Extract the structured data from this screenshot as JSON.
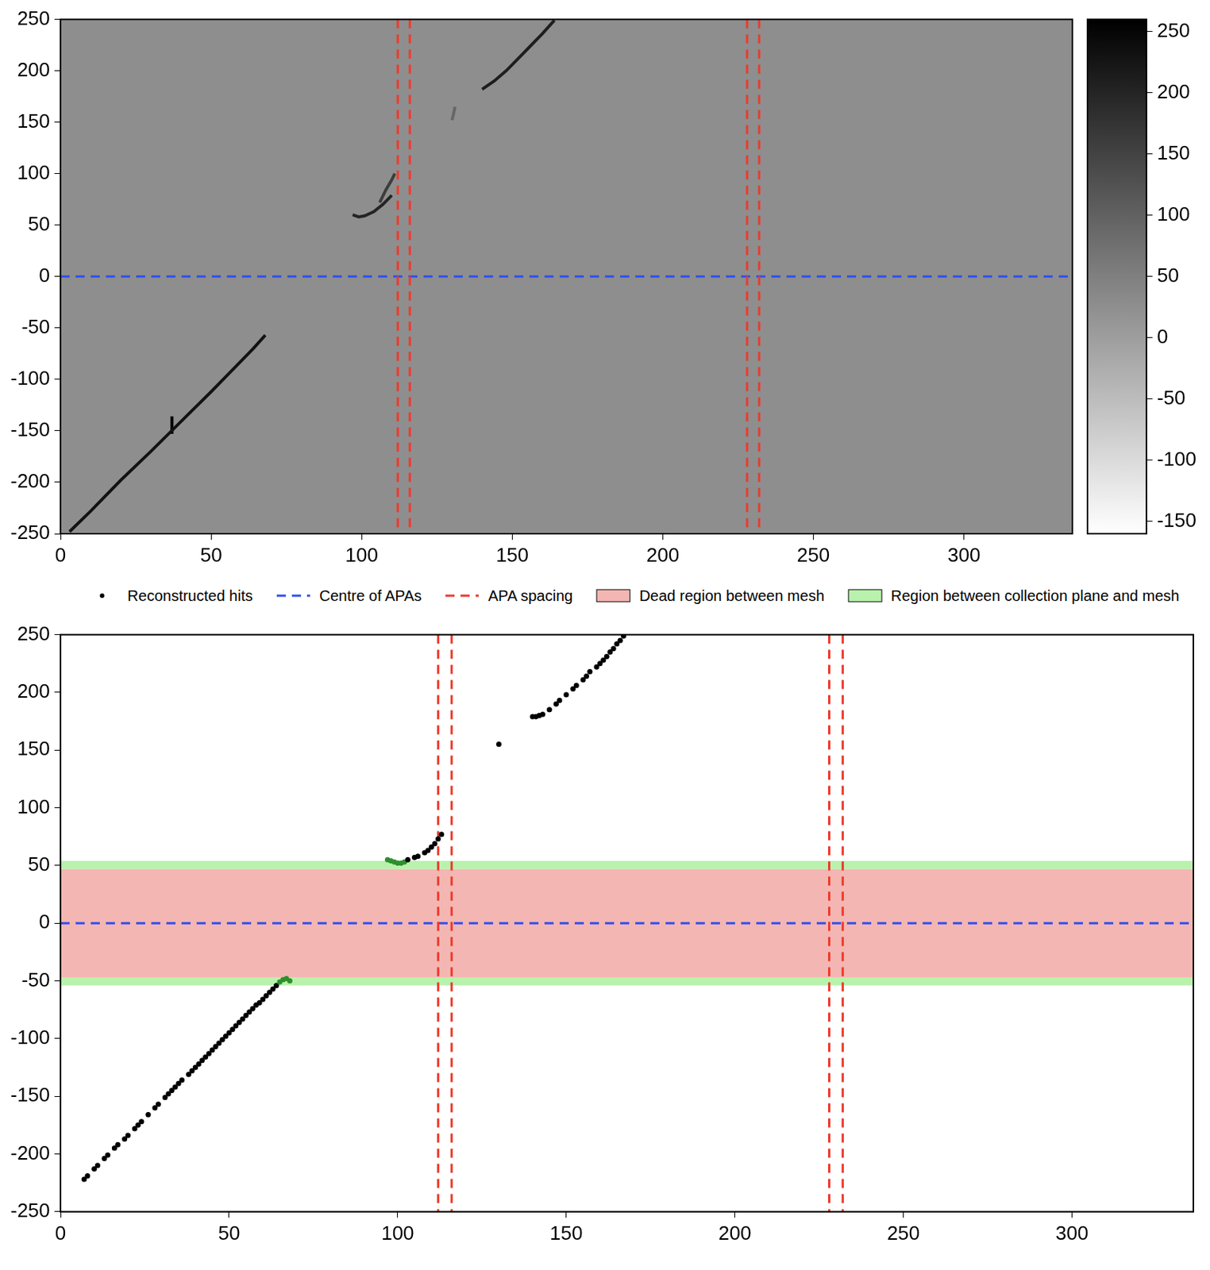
{
  "chart_data": [
    {
      "type": "scatter",
      "xlim": [
        0,
        336
      ],
      "xticks": [
        0,
        50,
        100,
        150,
        200,
        250,
        300
      ],
      "ylim": [
        -250,
        250
      ],
      "yticks": [
        -250,
        -200,
        -150,
        -100,
        -50,
        0,
        50,
        100,
        150,
        200,
        250
      ],
      "grid": false,
      "colorbar": {
        "range": [
          -160,
          260
        ],
        "ticks": [
          -150,
          -100,
          -50,
          0,
          50,
          100,
          150,
          200,
          250
        ]
      },
      "series": [
        {
          "type": "line",
          "line_style": "solid",
          "z": 230,
          "x": [
            3,
            10,
            20,
            30,
            40,
            50,
            58,
            64,
            68
          ],
          "values": [
            -248,
            -228,
            -198,
            -170,
            -141,
            -112,
            -88,
            -70,
            -57
          ]
        },
        {
          "type": "line",
          "line_style": "solid",
          "z": 250,
          "x": [
            37,
            37,
            37
          ],
          "values": [
            -153,
            -145,
            -136
          ]
        },
        {
          "type": "line",
          "line_style": "solid",
          "z": 200,
          "x": [
            97,
            99,
            101,
            104,
            107,
            110
          ],
          "values": [
            60,
            58,
            59,
            63,
            70,
            79
          ]
        },
        {
          "type": "line",
          "line_style": "solid",
          "z": 160,
          "x": [
            106,
            108,
            110,
            111
          ],
          "values": [
            72,
            84,
            94,
            100
          ]
        },
        {
          "type": "line",
          "line_style": "solid",
          "z": 90,
          "x": [
            130,
            130.5,
            131
          ],
          "values": [
            152,
            158,
            165
          ]
        },
        {
          "type": "line",
          "line_style": "solid",
          "z": 210,
          "x": [
            140,
            144,
            148,
            152,
            156,
            160,
            164
          ],
          "values": [
            182,
            190,
            200,
            212,
            224,
            236,
            249
          ]
        },
        {
          "type": "hline",
          "color": "#3050f0",
          "line_style": "dashed",
          "values": [
            0
          ]
        },
        {
          "type": "vline",
          "color": "#ee3a2c",
          "line_style": "dashed",
          "values": [
            112,
            116,
            228,
            232
          ]
        }
      ]
    },
    {
      "type": "scatter",
      "xlim": [
        0,
        336
      ],
      "xticks": [
        0,
        50,
        100,
        150,
        200,
        250,
        300
      ],
      "ylim": [
        -250,
        250
      ],
      "yticks": [
        -250,
        -200,
        -150,
        -100,
        -50,
        0,
        50,
        100,
        150,
        200,
        250
      ],
      "grid": false,
      "legend": "top",
      "series": [
        {
          "name": "Reconstructed hits",
          "type": "scatter",
          "marker": "circle",
          "color": "#000000",
          "x": [
            7,
            8,
            10,
            11,
            13,
            14,
            16,
            17,
            19,
            20,
            22,
            23,
            24,
            26,
            28,
            29,
            31,
            32,
            33,
            34,
            35,
            36,
            38,
            39,
            40,
            41,
            42,
            43,
            44,
            45,
            46,
            47,
            48,
            49,
            50,
            51,
            52,
            53,
            54,
            55,
            56,
            57,
            58,
            59,
            60,
            61,
            62,
            63,
            64,
            65,
            66,
            67,
            68,
            97,
            98,
            99,
            100,
            101,
            102,
            103,
            105,
            106,
            108,
            109,
            110,
            111,
            112,
            113,
            130,
            140,
            141,
            142,
            143,
            145,
            147,
            148,
            150,
            152,
            153,
            155,
            156,
            157,
            159,
            160,
            161,
            162,
            163,
            164,
            165,
            166,
            167
          ],
          "values": [
            -222,
            -219,
            -213,
            -210,
            -204,
            -201,
            -195,
            -192,
            -187,
            -184,
            -178,
            -175,
            -172,
            -166,
            -160,
            -157,
            -151,
            -148,
            -145,
            -142,
            -139,
            -136,
            -131,
            -128,
            -125,
            -122,
            -119,
            -116,
            -113,
            -110,
            -107,
            -104,
            -101,
            -98,
            -95,
            -92,
            -89,
            -86,
            -83,
            -80,
            -77,
            -74,
            -71,
            -69,
            -66,
            -63,
            -60,
            -57,
            -54,
            -51,
            -49,
            -48,
            -50,
            55,
            54,
            53,
            52,
            52,
            53,
            55,
            57,
            58,
            61,
            63,
            66,
            69,
            73,
            77,
            155,
            179,
            179,
            180,
            181,
            185,
            190,
            193,
            198,
            203,
            206,
            211,
            214,
            218,
            222,
            225,
            228,
            231,
            235,
            238,
            242,
            245,
            249
          ],
          "colors": [
            "#000000",
            "#000000",
            "#000000",
            "#000000",
            "#000000",
            "#000000",
            "#000000",
            "#000000",
            "#000000",
            "#000000",
            "#000000",
            "#000000",
            "#000000",
            "#000000",
            "#000000",
            "#000000",
            "#000000",
            "#000000",
            "#000000",
            "#000000",
            "#000000",
            "#000000",
            "#000000",
            "#000000",
            "#000000",
            "#000000",
            "#000000",
            "#000000",
            "#000000",
            "#000000",
            "#000000",
            "#000000",
            "#000000",
            "#000000",
            "#000000",
            "#000000",
            "#000000",
            "#000000",
            "#000000",
            "#000000",
            "#000000",
            "#000000",
            "#000000",
            "#000000",
            "#000000",
            "#000000",
            "#000000",
            "#000000",
            "#000000",
            "#2f8f2f",
            "#2f8f2f",
            "#2f8f2f",
            "#2f8f2f",
            "#2f8f2f",
            "#2f8f2f",
            "#2f8f2f",
            "#2f8f2f",
            "#2f8f2f",
            "#2f8f2f",
            "#000000",
            "#000000",
            "#000000",
            "#000000",
            "#000000",
            "#000000",
            "#000000",
            "#000000",
            "#000000",
            "#000000",
            "#000000",
            "#000000",
            "#000000",
            "#000000",
            "#000000",
            "#000000",
            "#000000",
            "#000000",
            "#000000",
            "#000000",
            "#000000",
            "#000000",
            "#000000",
            "#000000",
            "#000000",
            "#000000",
            "#000000",
            "#000000",
            "#000000",
            "#000000",
            "#000000",
            "#000000"
          ]
        },
        {
          "name": "Centre of APAs",
          "type": "hline",
          "color": "#3050f0",
          "line_style": "dashed",
          "values": [
            0
          ]
        },
        {
          "name": "APA spacing",
          "type": "vline",
          "color": "#ee3a2c",
          "line_style": "dashed",
          "values": [
            112,
            116,
            228,
            232
          ]
        },
        {
          "name": "Dead region between mesh",
          "type": "band",
          "color": "#f4b6b2",
          "values": [
            [
              -47,
              47
            ]
          ]
        },
        {
          "name": "Region between collection plane and mesh",
          "type": "band",
          "color": "#b9f2ac",
          "values": [
            [
              47,
              54
            ],
            [
              -54,
              -47
            ]
          ]
        }
      ]
    }
  ]
}
